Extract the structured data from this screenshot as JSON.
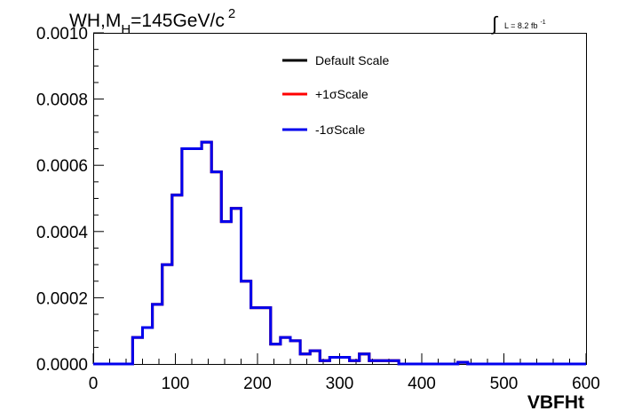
{
  "chart_data": {
    "type": "line",
    "title": {
      "main": "WH,M",
      "subscript": "H",
      "rest": "=145GeV/c",
      "superscript": "2"
    },
    "luminosity": {
      "integral_sign": "∫",
      "text": "L = 8.2 fb",
      "superscript": "-1"
    },
    "xlabel": "VBFHt",
    "ylabel": "",
    "xlim": [
      0,
      600
    ],
    "ylim": [
      0,
      0.001
    ],
    "x_ticks": [
      0,
      100,
      200,
      300,
      400,
      500,
      600
    ],
    "x_tick_labels": [
      "0",
      "100",
      "200",
      "300",
      "400",
      "500",
      "600"
    ],
    "y_ticks": [
      0,
      0.0002,
      0.0004,
      0.0006,
      0.0008,
      0.001
    ],
    "y_tick_labels": [
      "0.0000",
      "0.0002",
      "0.0004",
      "0.0006",
      "0.0008",
      "0.0010"
    ],
    "grid": false,
    "legend_position": "top-center",
    "bin_edges": [
      0,
      12,
      24,
      36,
      48,
      60,
      72,
      84,
      96,
      108,
      120,
      132,
      144,
      156,
      168,
      180,
      192,
      204,
      216,
      228,
      240,
      252,
      264,
      276,
      288,
      300,
      312,
      324,
      336,
      348,
      360,
      372,
      384,
      396,
      408,
      420,
      432,
      444,
      456,
      468,
      480,
      492,
      504,
      516,
      528,
      540,
      552,
      564,
      576,
      588,
      600
    ],
    "series": [
      {
        "name": "Default Scale",
        "color": "#000000",
        "values": [
          0,
          0,
          0,
          0,
          8e-05,
          0.00011,
          0.00018,
          0.0003,
          0.00051,
          0.00065,
          0.00065,
          0.00067,
          0.00058,
          0.00043,
          0.00047,
          0.00025,
          0.00017,
          0.00017,
          6e-05,
          8e-05,
          7e-05,
          3e-05,
          4e-05,
          1e-05,
          2e-05,
          2e-05,
          1e-05,
          3e-05,
          1e-05,
          1e-05,
          1e-05,
          0,
          0,
          0,
          0,
          0,
          0,
          5e-06,
          0,
          0,
          0,
          0,
          0,
          0,
          0,
          0,
          0,
          0,
          0,
          0
        ]
      },
      {
        "name": "+1σScale",
        "color": "#ff0000",
        "values": [
          0,
          0,
          0,
          0,
          8e-05,
          0.00011,
          0.00018,
          0.0003,
          0.00051,
          0.00065,
          0.00065,
          0.00067,
          0.00058,
          0.00043,
          0.00047,
          0.00025,
          0.00017,
          0.00017,
          6e-05,
          8e-05,
          7e-05,
          3e-05,
          4e-05,
          1e-05,
          2e-05,
          2e-05,
          1e-05,
          3e-05,
          1e-05,
          1e-05,
          1e-05,
          0,
          0,
          0,
          0,
          0,
          0,
          5e-06,
          0,
          0,
          0,
          0,
          0,
          0,
          0,
          0,
          0,
          0,
          0,
          0
        ]
      },
      {
        "name": "-1σScale",
        "color": "#0000ee",
        "values": [
          0,
          0,
          0,
          0,
          8e-05,
          0.00011,
          0.00018,
          0.0003,
          0.00051,
          0.00065,
          0.00065,
          0.00067,
          0.00058,
          0.00043,
          0.00047,
          0.00025,
          0.00017,
          0.00017,
          6e-05,
          8e-05,
          7e-05,
          3e-05,
          4e-05,
          1e-05,
          2e-05,
          2e-05,
          1e-05,
          3e-05,
          1e-05,
          1e-05,
          1e-05,
          0,
          0,
          0,
          0,
          0,
          0,
          5e-06,
          0,
          0,
          0,
          0,
          0,
          0,
          0,
          0,
          0,
          0,
          0,
          0
        ]
      }
    ]
  }
}
